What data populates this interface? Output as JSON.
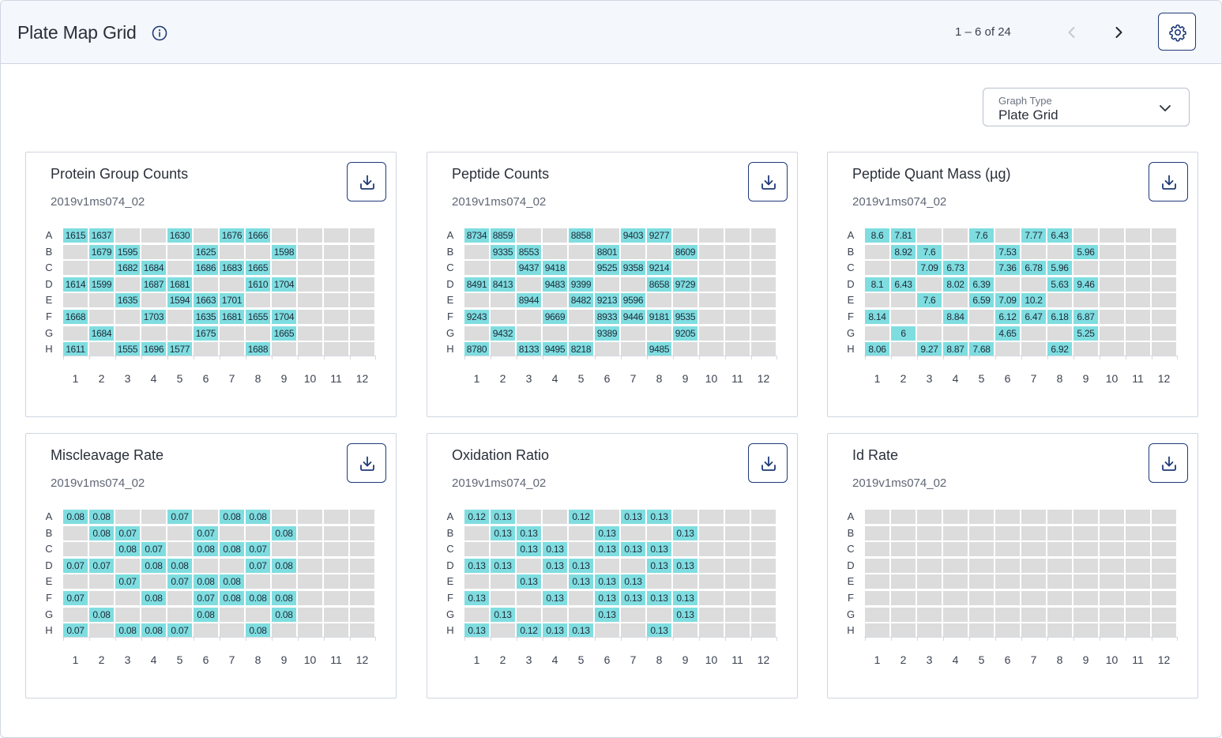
{
  "header": {
    "title": "Plate Map Grid",
    "pagination": "1 – 6 of 24"
  },
  "icons": {
    "info": "info-icon",
    "prev": "chevron-left-icon",
    "next": "chevron-right-icon",
    "settings": "gear-icon",
    "dropdown": "chevron-down-icon",
    "download": "download-icon"
  },
  "colors": {
    "well_filled": "#7fdde0",
    "well_empty": "#dcdcdc",
    "accent": "#1f3a78"
  },
  "graph_type": {
    "label": "Graph Type",
    "value": "Plate Grid"
  },
  "plate": {
    "rows": [
      "A",
      "B",
      "C",
      "D",
      "E",
      "F",
      "G",
      "H"
    ],
    "cols": [
      "1",
      "2",
      "3",
      "4",
      "5",
      "6",
      "7",
      "8",
      "9",
      "10",
      "11",
      "12"
    ]
  },
  "cards": [
    {
      "title": "Protein Group Counts",
      "subtitle": "2019v1ms074_02",
      "grid": [
        [
          "1615",
          "1637",
          "",
          "",
          "1630",
          "",
          "1676",
          "1666",
          "",
          "",
          "",
          ""
        ],
        [
          "",
          "1679",
          "1595",
          "",
          "",
          "1625",
          "",
          "",
          "1598",
          "",
          "",
          ""
        ],
        [
          "",
          "",
          "1682",
          "1684",
          "",
          "1686",
          "1683",
          "1665",
          "",
          "",
          "",
          ""
        ],
        [
          "1614",
          "1599",
          "",
          "1687",
          "1681",
          "",
          "",
          "1610",
          "1704",
          "",
          "",
          ""
        ],
        [
          "",
          "",
          "1635",
          "",
          "1594",
          "1663",
          "1701",
          "",
          "",
          "",
          "",
          ""
        ],
        [
          "1668",
          "",
          "",
          "1703",
          "",
          "1635",
          "1681",
          "1655",
          "1704",
          "",
          "",
          ""
        ],
        [
          "",
          "1684",
          "",
          "",
          "",
          "1675",
          "",
          "",
          "1665",
          "",
          "",
          ""
        ],
        [
          "1611",
          "",
          "1555",
          "1696",
          "1577",
          "",
          "",
          "1688",
          "",
          "",
          "",
          ""
        ]
      ]
    },
    {
      "title": "Peptide Counts",
      "subtitle": "2019v1ms074_02",
      "grid": [
        [
          "8734",
          "8859",
          "",
          "",
          "8858",
          "",
          "9403",
          "9277",
          "",
          "",
          "",
          ""
        ],
        [
          "",
          "9335",
          "8553",
          "",
          "",
          "8801",
          "",
          "",
          "8609",
          "",
          "",
          ""
        ],
        [
          "",
          "",
          "9437",
          "9418",
          "",
          "9525",
          "9358",
          "9214",
          "",
          "",
          "",
          ""
        ],
        [
          "8491",
          "8413",
          "",
          "9483",
          "9399",
          "",
          "",
          "8658",
          "9729",
          "",
          "",
          ""
        ],
        [
          "",
          "",
          "8944",
          "",
          "8482",
          "9213",
          "9596",
          "",
          "",
          "",
          "",
          ""
        ],
        [
          "9243",
          "",
          "",
          "9669",
          "",
          "8933",
          "9446",
          "9181",
          "9535",
          "",
          "",
          ""
        ],
        [
          "",
          "9432",
          "",
          "",
          "",
          "9389",
          "",
          "",
          "9205",
          "",
          "",
          ""
        ],
        [
          "8780",
          "",
          "8133",
          "9495",
          "8218",
          "",
          "",
          "9485",
          "",
          "",
          "",
          ""
        ]
      ]
    },
    {
      "title": "Peptide Quant Mass (µg)",
      "subtitle": "2019v1ms074_02",
      "grid": [
        [
          "8.6",
          "7.81",
          "",
          "",
          "7.6",
          "",
          "7.77",
          "6.43",
          "",
          "",
          "",
          ""
        ],
        [
          "",
          "8.92",
          "7.6",
          "",
          "",
          "7.53",
          "",
          "",
          "5.96",
          "",
          "",
          ""
        ],
        [
          "",
          "",
          "7.09",
          "6.73",
          "",
          "7.36",
          "6.78",
          "5.96",
          "",
          "",
          "",
          ""
        ],
        [
          "8.1",
          "6.43",
          "",
          "8.02",
          "6.39",
          "",
          "",
          "5.63",
          "9.46",
          "",
          "",
          ""
        ],
        [
          "",
          "",
          "7.6",
          "",
          "6.59",
          "7.09",
          "10.2",
          "",
          "",
          "",
          "",
          ""
        ],
        [
          "8.14",
          "",
          "",
          "8.84",
          "",
          "6.12",
          "6.47",
          "6.18",
          "6.87",
          "",
          "",
          ""
        ],
        [
          "",
          "6",
          "",
          "",
          "",
          "4.65",
          "",
          "",
          "5.25",
          "",
          "",
          ""
        ],
        [
          "8.06",
          "",
          "9.27",
          "8.87",
          "7.68",
          "",
          "",
          "6.92",
          "",
          "",
          "",
          ""
        ]
      ]
    },
    {
      "title": "Miscleavage Rate",
      "subtitle": "2019v1ms074_02",
      "grid": [
        [
          "0.08",
          "0.08",
          "",
          "",
          "0.07",
          "",
          "0.08",
          "0.08",
          "",
          "",
          "",
          ""
        ],
        [
          "",
          "0.08",
          "0.07",
          "",
          "",
          "0.07",
          "",
          "",
          "0.08",
          "",
          "",
          ""
        ],
        [
          "",
          "",
          "0.08",
          "0.07",
          "",
          "0.08",
          "0.08",
          "0.07",
          "",
          "",
          "",
          ""
        ],
        [
          "0.07",
          "0.07",
          "",
          "0.08",
          "0.08",
          "",
          "",
          "0.07",
          "0.08",
          "",
          "",
          ""
        ],
        [
          "",
          "",
          "0.07",
          "",
          "0.07",
          "0.08",
          "0.08",
          "",
          "",
          "",
          "",
          ""
        ],
        [
          "0.07",
          "",
          "",
          "0.08",
          "",
          "0.07",
          "0.08",
          "0.08",
          "0.08",
          "",
          "",
          ""
        ],
        [
          "",
          "0.08",
          "",
          "",
          "",
          "0.08",
          "",
          "",
          "0.08",
          "",
          "",
          ""
        ],
        [
          "0.07",
          "",
          "0.08",
          "0.08",
          "0.07",
          "",
          "",
          "0.08",
          "",
          "",
          "",
          ""
        ]
      ]
    },
    {
      "title": "Oxidation Ratio",
      "subtitle": "2019v1ms074_02",
      "grid": [
        [
          "0.12",
          "0.13",
          "",
          "",
          "0.12",
          "",
          "0.13",
          "0.13",
          "",
          "",
          "",
          ""
        ],
        [
          "",
          "0.13",
          "0.13",
          "",
          "",
          "0.13",
          "",
          "",
          "0.13",
          "",
          "",
          ""
        ],
        [
          "",
          "",
          "0.13",
          "0.13",
          "",
          "0.13",
          "0.13",
          "0.13",
          "",
          "",
          "",
          ""
        ],
        [
          "0.13",
          "0.13",
          "",
          "0.13",
          "0.13",
          "",
          "",
          "0.13",
          "0.13",
          "",
          "",
          ""
        ],
        [
          "",
          "",
          "0.13",
          "",
          "0.13",
          "0.13",
          "0.13",
          "",
          "",
          "",
          "",
          ""
        ],
        [
          "0.13",
          "",
          "",
          "0.13",
          "",
          "0.13",
          "0.13",
          "0.13",
          "0.13",
          "",
          "",
          ""
        ],
        [
          "",
          "0.13",
          "",
          "",
          "",
          "0.13",
          "",
          "",
          "0.13",
          "",
          "",
          ""
        ],
        [
          "0.13",
          "",
          "0.12",
          "0.13",
          "0.13",
          "",
          "",
          "0.13",
          "",
          "",
          "",
          ""
        ]
      ]
    },
    {
      "title": "Id Rate",
      "subtitle": "2019v1ms074_02",
      "grid": [
        [
          "",
          "",
          "",
          "",
          "",
          "",
          "",
          "",
          "",
          "",
          "",
          ""
        ],
        [
          "",
          "",
          "",
          "",
          "",
          "",
          "",
          "",
          "",
          "",
          "",
          ""
        ],
        [
          "",
          "",
          "",
          "",
          "",
          "",
          "",
          "",
          "",
          "",
          "",
          ""
        ],
        [
          "",
          "",
          "",
          "",
          "",
          "",
          "",
          "",
          "",
          "",
          "",
          ""
        ],
        [
          "",
          "",
          "",
          "",
          "",
          "",
          "",
          "",
          "",
          "",
          "",
          ""
        ],
        [
          "",
          "",
          "",
          "",
          "",
          "",
          "",
          "",
          "",
          "",
          "",
          ""
        ],
        [
          "",
          "",
          "",
          "",
          "",
          "",
          "",
          "",
          "",
          "",
          "",
          ""
        ],
        [
          "",
          "",
          "",
          "",
          "",
          "",
          "",
          "",
          "",
          "",
          "",
          ""
        ]
      ]
    }
  ]
}
